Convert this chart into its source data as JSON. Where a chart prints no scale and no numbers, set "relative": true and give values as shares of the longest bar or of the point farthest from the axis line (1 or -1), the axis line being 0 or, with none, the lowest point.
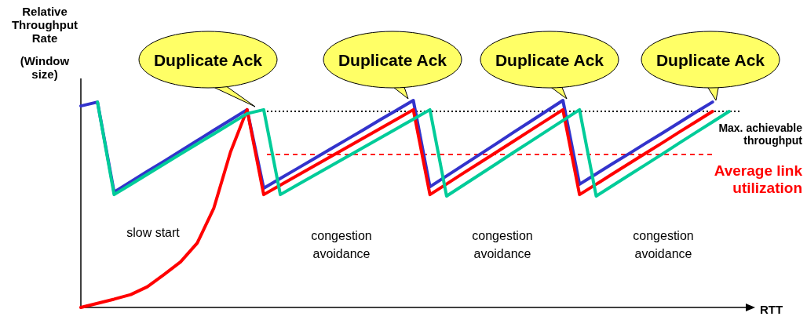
{
  "chart_data": {
    "type": "line",
    "relative": true,
    "xlabel": "RTT",
    "ylabel": "Relative Throughput Rate (Window size)",
    "categories": [
      null,
      null,
      null,
      null,
      null,
      null,
      null,
      null,
      null,
      null,
      null,
      null,
      null,
      null,
      null,
      null,
      null,
      null,
      null,
      null,
      null,
      null,
      null,
      null,
      null,
      null,
      null,
      null,
      null,
      null,
      null,
      null,
      null,
      null,
      null,
      null,
      null,
      null,
      null,
      null
    ],
    "series": [
      {
        "color": "#3333cc",
        "values": [
          0.973,
          0.992,
          0.557,
          0.607,
          0.657,
          0.706,
          0.756,
          0.806,
          0.856,
          0.905,
          0.955,
          0.576,
          0.623,
          0.67,
          0.717,
          0.764,
          0.811,
          0.858,
          0.906,
          0.953,
          1.0,
          0.583,
          0.635,
          0.687,
          0.739,
          0.791,
          0.844,
          0.896,
          0.948,
          1.0,
          0.595,
          0.645,
          0.695,
          0.744,
          0.794,
          0.843,
          0.893,
          0.943,
          0.992,
          null
        ]
      },
      {
        "color": "#ff0000",
        "values": [
          0,
          0.02,
          0.04,
          0.062,
          0.1,
          0.159,
          0.22,
          0.311,
          0.48,
          0.75,
          0.955,
          0.545,
          0.591,
          0.636,
          0.682,
          0.727,
          0.773,
          0.818,
          0.864,
          0.909,
          0.955,
          0.545,
          0.596,
          0.648,
          0.699,
          0.75,
          0.801,
          0.853,
          0.904,
          0.955,
          0.545,
          0.595,
          0.646,
          0.696,
          0.746,
          0.796,
          0.847,
          0.897,
          0.947,
          null
        ]
      },
      {
        "color": "#00cc99",
        "values": [
          null,
          0.992,
          0.545,
          0.594,
          0.643,
          0.692,
          0.741,
          0.79,
          0.838,
          0.887,
          0.936,
          0.955,
          0.545,
          0.591,
          0.636,
          0.682,
          0.727,
          0.773,
          0.818,
          0.864,
          0.909,
          0.955,
          0.538,
          0.59,
          0.642,
          0.694,
          0.747,
          0.799,
          0.851,
          0.903,
          0.955,
          0.538,
          0.589,
          0.64,
          0.691,
          0.742,
          0.794,
          0.845,
          0.896,
          0.947
        ]
      }
    ],
    "ref_lines": [
      {
        "axis": "y",
        "value": 0.947,
        "label": "Max. achievable throughput",
        "color": "#000000",
        "line_style": "dotted"
      },
      {
        "axis": "y",
        "value": 0.739,
        "label": "Average link utilization",
        "color": "#ff0000",
        "line_style": "dashed"
      }
    ],
    "annotations": [
      "Duplicate Ack",
      "Duplicate Ack",
      "Duplicate Ack",
      "Duplicate Ack",
      "slow start",
      "congestion avoidance",
      "congestion avoidance",
      "congestion avoidance"
    ]
  }
}
